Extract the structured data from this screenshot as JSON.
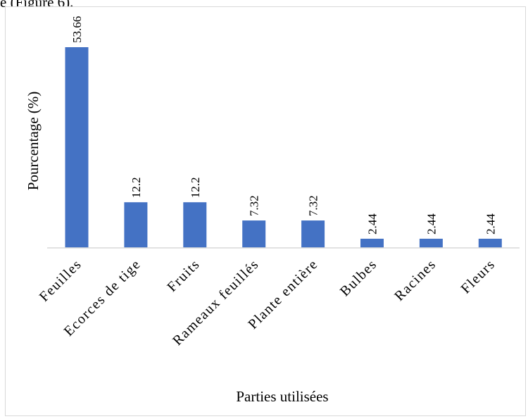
{
  "page": {
    "top_text": "e (Figure 6)."
  },
  "chart_data": {
    "type": "bar",
    "categories": [
      "Feuilles",
      "Ecorces de tige",
      "Fruits",
      "Rameaux feuillés",
      "Plante entière",
      "Bulbes",
      "Racines",
      "Fleurs"
    ],
    "values": [
      53.66,
      12.2,
      12.2,
      7.32,
      7.32,
      2.44,
      2.44,
      2.44
    ],
    "value_labels": [
      "53.66",
      "12.2",
      "12.2",
      "7.32",
      "7.32",
      "2.44",
      "2.44",
      "2.44"
    ],
    "title": "",
    "xlabel": "Parties utilisées",
    "ylabel": "Pourcentage (%)",
    "ylim": [
      0,
      54
    ],
    "bar_color": "#4472c4",
    "grid": false,
    "legend": "none"
  }
}
